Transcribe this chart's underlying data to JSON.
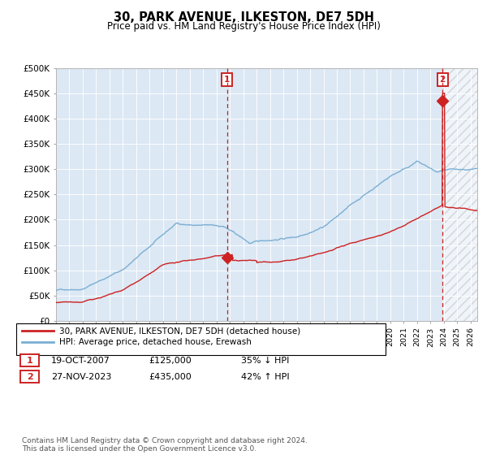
{
  "title": "30, PARK AVENUE, ILKESTON, DE7 5DH",
  "subtitle": "Price paid vs. HM Land Registry's House Price Index (HPI)",
  "xlim_start": 1995.0,
  "xlim_end": 2026.5,
  "ylim": [
    0,
    500000
  ],
  "hpi_color": "#7bafd4",
  "price_color": "#cc2222",
  "bg_color": "#dce8f4",
  "hatch_color": "#cccccc",
  "sale1_x": 2007.8,
  "sale1_price": 125000,
  "sale2_x": 2023.9,
  "sale2_price": 435000,
  "legend_line1": "30, PARK AVENUE, ILKESTON, DE7 5DH (detached house)",
  "legend_line2": "HPI: Average price, detached house, Erewash",
  "ann1_date": "19-OCT-2007",
  "ann1_price": "£125,000",
  "ann1_hpi": "35% ↓ HPI",
  "ann2_date": "27-NOV-2023",
  "ann2_price": "£435,000",
  "ann2_hpi": "42% ↑ HPI",
  "footer": "Contains HM Land Registry data © Crown copyright and database right 2024.\nThis data is licensed under the Open Government Licence v3.0.",
  "yticks": [
    0,
    50000,
    100000,
    150000,
    200000,
    250000,
    300000,
    350000,
    400000,
    450000,
    500000
  ],
  "ytick_labels": [
    "£0",
    "£50K",
    "£100K",
    "£150K",
    "£200K",
    "£250K",
    "£300K",
    "£350K",
    "£400K",
    "£450K",
    "£500K"
  ]
}
